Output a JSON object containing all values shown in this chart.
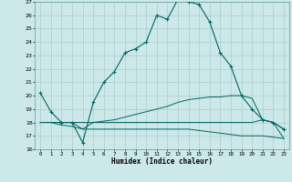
{
  "xlabel": "Humidex (Indice chaleur)",
  "bg_color": "#cce8e8",
  "grid_color": "#aacccc",
  "line_color": "#006666",
  "xlim": [
    -0.5,
    23.5
  ],
  "ylim": [
    16,
    27
  ],
  "xticks": [
    0,
    1,
    2,
    3,
    4,
    5,
    6,
    7,
    8,
    9,
    10,
    11,
    12,
    13,
    14,
    15,
    16,
    17,
    18,
    19,
    20,
    21,
    22,
    23
  ],
  "yticks": [
    16,
    17,
    18,
    19,
    20,
    21,
    22,
    23,
    24,
    25,
    26,
    27
  ],
  "line1_x": [
    0,
    1,
    2,
    3,
    4,
    5,
    6,
    7,
    8,
    9,
    10,
    11,
    12,
    13,
    14,
    15,
    16,
    17,
    18,
    19,
    20,
    21,
    22,
    23
  ],
  "line1_y": [
    20.2,
    18.8,
    18.0,
    18.0,
    16.5,
    19.5,
    21.0,
    21.8,
    23.2,
    23.5,
    24.0,
    26.0,
    25.7,
    27.2,
    27.0,
    26.8,
    25.5,
    23.2,
    22.2,
    20.0,
    19.0,
    18.2,
    18.0,
    17.5
  ],
  "line2_x": [
    0,
    1,
    2,
    3,
    4,
    5,
    6,
    7,
    8,
    9,
    10,
    11,
    12,
    13,
    14,
    15,
    16,
    17,
    18,
    19,
    20,
    21,
    22,
    23
  ],
  "line2_y": [
    18.0,
    18.0,
    18.0,
    18.0,
    18.0,
    18.0,
    18.1,
    18.2,
    18.4,
    18.6,
    18.8,
    19.0,
    19.2,
    19.5,
    19.7,
    19.8,
    19.9,
    19.9,
    20.0,
    20.0,
    19.8,
    18.2,
    18.0,
    16.8
  ],
  "line3_x": [
    0,
    1,
    2,
    3,
    4,
    5,
    6,
    7,
    8,
    9,
    10,
    11,
    12,
    13,
    14,
    15,
    16,
    17,
    18,
    19,
    20,
    21,
    22,
    23
  ],
  "line3_y": [
    18.0,
    18.0,
    17.8,
    17.7,
    17.5,
    17.5,
    17.5,
    17.5,
    17.5,
    17.5,
    17.5,
    17.5,
    17.5,
    17.5,
    17.5,
    17.4,
    17.3,
    17.2,
    17.1,
    17.0,
    17.0,
    17.0,
    16.9,
    16.8
  ],
  "line4_x": [
    0,
    1,
    2,
    3,
    4,
    5,
    6,
    7,
    8,
    9,
    10,
    11,
    12,
    13,
    14,
    15,
    16,
    17,
    18,
    19,
    20,
    21,
    22,
    23
  ],
  "line4_y": [
    18.0,
    18.0,
    18.0,
    18.0,
    17.5,
    18.0,
    18.0,
    18.0,
    18.0,
    18.0,
    18.0,
    18.0,
    18.0,
    18.0,
    18.0,
    18.0,
    18.0,
    18.0,
    18.0,
    18.0,
    18.0,
    18.2,
    18.0,
    17.5
  ]
}
